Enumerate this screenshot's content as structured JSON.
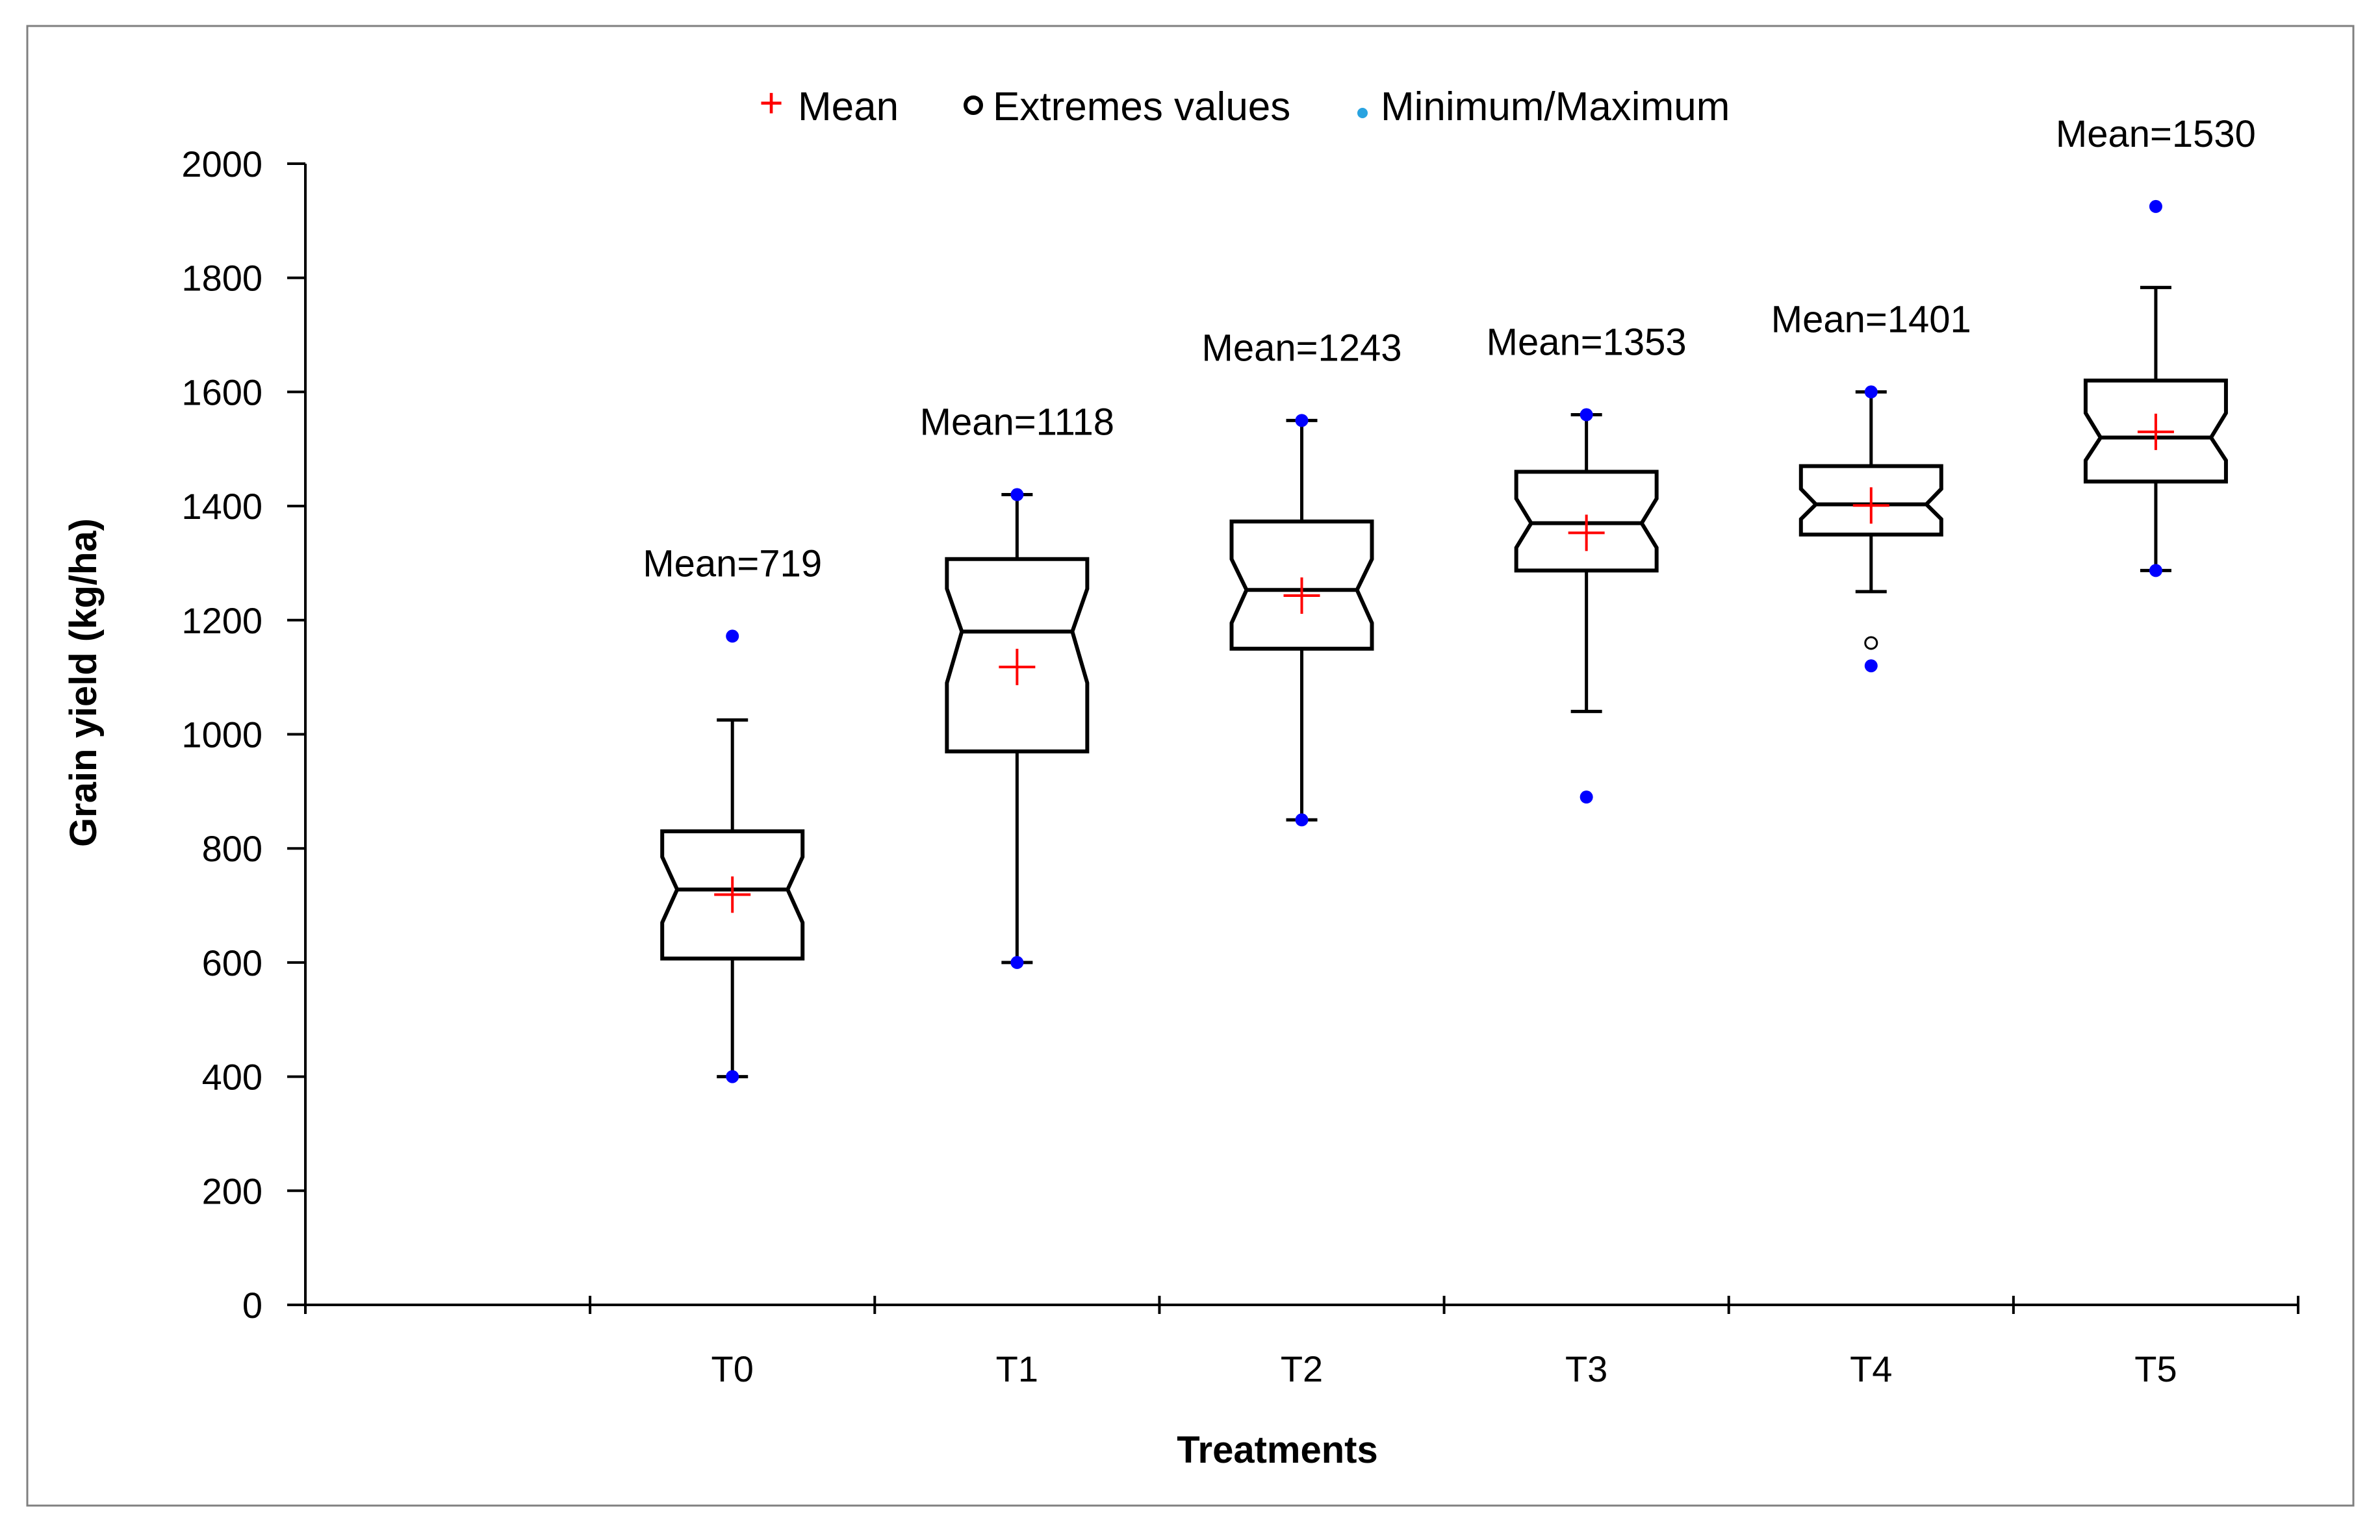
{
  "chart_data": {
    "type": "boxplot",
    "title": "",
    "xlabel": "Treatments",
    "ylabel": "Grain yield (kg/ha)",
    "ylim": [
      0,
      2000
    ],
    "yticks": [
      0,
      200,
      400,
      600,
      800,
      1000,
      1200,
      1400,
      1600,
      1800,
      2000
    ],
    "categories": [
      "",
      "T0",
      "T1",
      "T2",
      "T3",
      "T4",
      "T5"
    ],
    "legend": {
      "placement": "top-center",
      "items": [
        {
          "symbol": "+",
          "label": "Mean",
          "color": "#ff0000"
        },
        {
          "symbol": "o",
          "label": "Extremes values",
          "color": "#000000"
        },
        {
          "symbol": "dot",
          "label": "Minimum/Maximum",
          "color": "#29a3e0"
        }
      ]
    },
    "colors": {
      "mean": "#ff0000",
      "minmax": "#0000ff",
      "box": "#000000",
      "axis": "#000000"
    },
    "series": [
      {
        "name": "T0",
        "mean_label": "Mean=719",
        "mean": 719,
        "q1": 607,
        "median": 728,
        "q3": 830,
        "notch_low": 670,
        "notch_high": 785,
        "whisker_low": 400,
        "whisker_high": 1025,
        "min": 400,
        "max": 1172,
        "extremes": []
      },
      {
        "name": "T1",
        "mean_label": "Mean=1118",
        "mean": 1118,
        "q1": 970,
        "median": 1180,
        "q3": 1307,
        "notch_low": 1090,
        "notch_high": 1255,
        "whisker_low": 600,
        "whisker_high": 1420,
        "min": 600,
        "max": 1420,
        "extremes": []
      },
      {
        "name": "T2",
        "mean_label": "Mean=1243",
        "mean": 1243,
        "q1": 1150,
        "median": 1253,
        "q3": 1373,
        "notch_low": 1195,
        "notch_high": 1307,
        "whisker_low": 850,
        "whisker_high": 1550,
        "min": 850,
        "max": 1550,
        "extremes": []
      },
      {
        "name": "T3",
        "mean_label": "Mean=1353",
        "mean": 1353,
        "q1": 1287,
        "median": 1370,
        "q3": 1460,
        "notch_low": 1327,
        "notch_high": 1413,
        "whisker_low": 1040,
        "whisker_high": 1560,
        "min": 890,
        "max": 1560,
        "extremes": []
      },
      {
        "name": "T4",
        "mean_label": "Mean=1401",
        "mean": 1401,
        "q1": 1350,
        "median": 1403,
        "q3": 1470,
        "notch_low": 1377,
        "notch_high": 1430,
        "whisker_low": 1250,
        "whisker_high": 1600,
        "min": 1120,
        "max": 1600,
        "extremes": [
          1160
        ]
      },
      {
        "name": "T5",
        "mean_label": "Mean=1530",
        "mean": 1530,
        "q1": 1443,
        "median": 1520,
        "q3": 1620,
        "notch_low": 1480,
        "notch_high": 1563,
        "whisker_low": 1287,
        "whisker_high": 1783,
        "min": 1287,
        "max": 1925,
        "extremes": []
      }
    ]
  }
}
